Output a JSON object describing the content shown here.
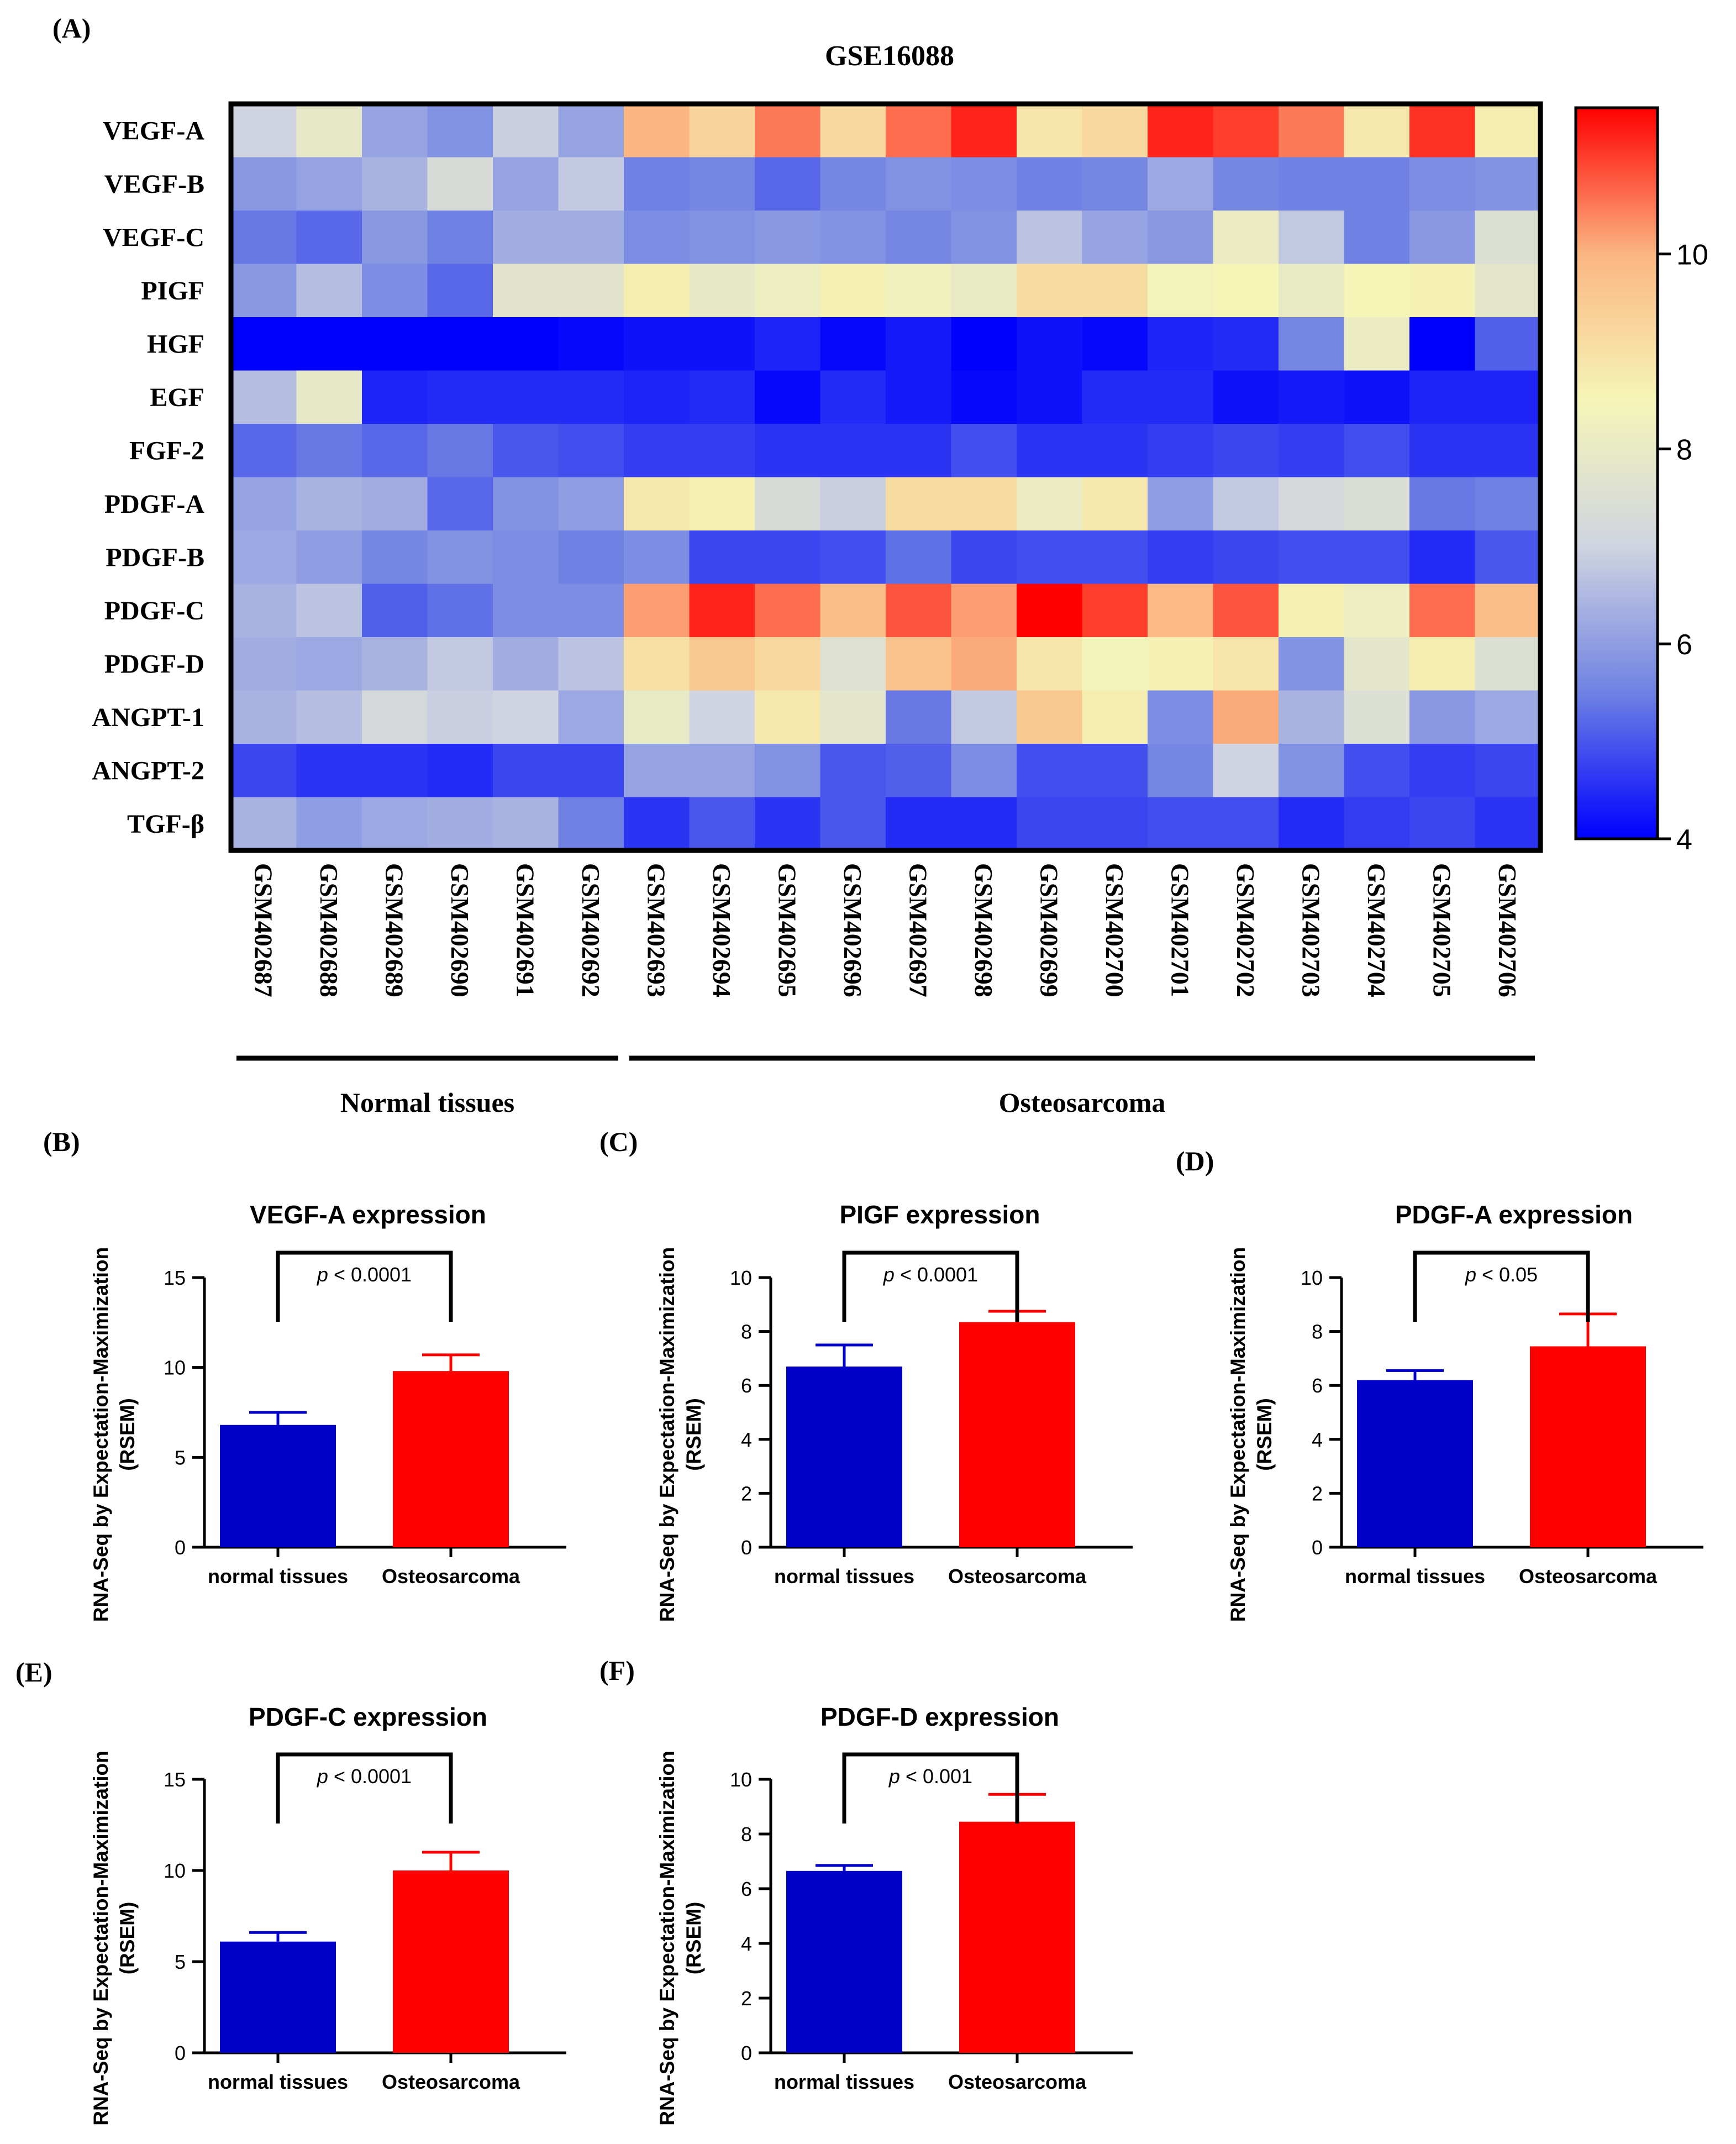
{
  "heatmap": {
    "panel_label": "(A)",
    "title": "GSE16088",
    "genes": [
      "VEGF-A",
      "VEGF-B",
      "VEGF-C",
      "PIGF",
      "HGF",
      "EGF",
      "FGF-2",
      "PDGF-A",
      "PDGF-B",
      "PDGF-C",
      "PDGF-D",
      "ANGPT-1",
      "ANGPT-2",
      "TGF-β"
    ],
    "samples": [
      "GSM402687",
      "GSM402688",
      "GSM402689",
      "GSM402690",
      "GSM402691",
      "GSM402692",
      "GSM402693",
      "GSM402694",
      "GSM402695",
      "GSM402696",
      "GSM402697",
      "GSM402698",
      "GSM402699",
      "GSM402700",
      "GSM402701",
      "GSM402702",
      "GSM402703",
      "GSM402704",
      "GSM402705",
      "GSM402706"
    ],
    "groups": [
      {
        "label": "Normal tissues",
        "first": 0,
        "last": 5
      },
      {
        "label": "Osteosarcoma",
        "first": 6,
        "last": 19
      }
    ],
    "colorbar": {
      "min": 4,
      "max": 11.5,
      "ticks": [
        "4",
        "6",
        "8",
        "10"
      ],
      "colors": [
        "#0000ff",
        "#6f82e3",
        "#cfd4e0",
        "#f5f5b8",
        "#fbb682",
        "#ff0000"
      ]
    },
    "values": [
      [
        7.0,
        7.9,
        6.1,
        5.8,
        6.9,
        6.1,
        10.0,
        9.3,
        10.5,
        9.2,
        10.6,
        11.2,
        8.9,
        9.2,
        11.2,
        11.0,
        10.5,
        8.8,
        11.1,
        8.7
      ],
      [
        5.9,
        6.1,
        6.4,
        7.3,
        6.1,
        6.8,
        5.5,
        5.6,
        5.2,
        5.6,
        5.8,
        5.7,
        5.5,
        5.6,
        6.2,
        5.6,
        5.5,
        5.5,
        5.7,
        5.8
      ],
      [
        5.4,
        5.2,
        5.9,
        5.5,
        6.3,
        6.3,
        5.7,
        5.8,
        5.9,
        5.8,
        5.6,
        5.8,
        6.7,
        6.1,
        5.9,
        8.1,
        6.8,
        5.5,
        5.9,
        7.5
      ],
      [
        5.9,
        6.6,
        5.7,
        5.2,
        7.7,
        7.7,
        8.7,
        7.9,
        8.2,
        8.6,
        8.3,
        8.0,
        9.1,
        9.1,
        8.4,
        8.5,
        8.0,
        8.5,
        8.6,
        7.8
      ],
      [
        4.0,
        4.0,
        4.0,
        4.0,
        4.0,
        4.1,
        4.2,
        4.2,
        4.4,
        4.1,
        4.3,
        4.0,
        4.2,
        4.1,
        4.4,
        4.5,
        5.6,
        8.1,
        4.0,
        5.1
      ],
      [
        6.6,
        7.9,
        4.4,
        4.5,
        4.5,
        4.5,
        4.4,
        4.5,
        4.1,
        4.5,
        4.3,
        4.1,
        4.2,
        4.5,
        4.5,
        4.2,
        4.3,
        4.2,
        4.4,
        4.4
      ],
      [
        5.2,
        5.4,
        5.2,
        5.4,
        5.0,
        4.9,
        4.7,
        4.7,
        4.6,
        4.6,
        4.6,
        4.9,
        4.6,
        4.6,
        4.7,
        4.8,
        4.7,
        4.9,
        4.6,
        4.6
      ],
      [
        6.1,
        6.4,
        6.3,
        5.2,
        5.8,
        6.0,
        8.8,
        8.6,
        7.3,
        6.9,
        9.1,
        9.1,
        8.1,
        8.8,
        6.0,
        6.8,
        7.2,
        7.4,
        5.4,
        5.5
      ],
      [
        6.2,
        6.0,
        5.6,
        5.8,
        5.7,
        5.5,
        5.7,
        4.8,
        4.8,
        4.9,
        5.3,
        4.8,
        4.9,
        4.9,
        4.7,
        4.8,
        4.9,
        4.9,
        4.5,
        5.0
      ],
      [
        6.4,
        6.7,
        5.1,
        5.3,
        5.7,
        5.7,
        10.2,
        11.2,
        10.6,
        9.8,
        10.8,
        10.2,
        11.5,
        11.0,
        9.9,
        10.8,
        8.6,
        8.2,
        10.6,
        9.8
      ],
      [
        6.3,
        6.2,
        6.4,
        6.8,
        6.3,
        6.7,
        9.0,
        9.6,
        9.2,
        7.6,
        9.7,
        10.1,
        8.9,
        8.4,
        8.6,
        8.9,
        5.8,
        7.8,
        8.7,
        7.5
      ],
      [
        6.4,
        6.6,
        7.2,
        6.9,
        7.0,
        6.2,
        8.0,
        7.0,
        8.8,
        7.8,
        5.4,
        6.8,
        9.6,
        8.7,
        5.7,
        10.1,
        6.4,
        7.5,
        5.9,
        6.2
      ],
      [
        4.8,
        4.6,
        4.6,
        4.5,
        4.8,
        4.8,
        6.1,
        6.1,
        5.8,
        5.0,
        5.1,
        5.7,
        4.9,
        4.9,
        5.6,
        7.0,
        5.8,
        4.9,
        4.7,
        4.8
      ],
      [
        6.4,
        6.0,
        6.2,
        6.3,
        6.4,
        5.5,
        4.6,
        5.0,
        4.6,
        5.0,
        4.5,
        4.5,
        4.8,
        4.8,
        4.9,
        4.9,
        4.5,
        4.7,
        4.8,
        4.6
      ]
    ]
  },
  "chart_data": [
    {
      "type": "bar",
      "panel_label": "(B)",
      "title": "VEGF-A expression",
      "ylabel": "RNA-Seq by Expectation-Maximization\n(RSEM)",
      "categories": [
        "normal tissues",
        "Osteosarcoma"
      ],
      "values": [
        6.8,
        9.8
      ],
      "errors": [
        0.7,
        0.9
      ],
      "ylim": [
        0,
        15
      ],
      "yticks": [
        "0",
        "5",
        "10",
        "15"
      ],
      "colors": [
        "#0000c8",
        "#ff0000"
      ],
      "significance": "p < 0.0001"
    },
    {
      "type": "bar",
      "panel_label": "(C)",
      "title": "PIGF expression",
      "ylabel": "RNA-Seq by Expectation-Maximization\n(RSEM)",
      "categories": [
        "normal tissues",
        "Osteosarcoma"
      ],
      "values": [
        6.7,
        8.35
      ],
      "errors": [
        0.8,
        0.4
      ],
      "ylim": [
        0,
        10
      ],
      "yticks": [
        "0",
        "2",
        "4",
        "6",
        "8",
        "10"
      ],
      "colors": [
        "#0000c8",
        "#ff0000"
      ],
      "significance": "p < 0.0001"
    },
    {
      "type": "bar",
      "panel_label": "(D)",
      "title": "PDGF-A expression",
      "ylabel": "RNA-Seq by Expectation-Maximization\n(RSEM)",
      "categories": [
        "normal tissues",
        "Osteosarcoma"
      ],
      "values": [
        6.2,
        7.45
      ],
      "errors": [
        0.35,
        1.2
      ],
      "ylim": [
        0,
        10
      ],
      "yticks": [
        "0",
        "2",
        "4",
        "6",
        "8",
        "10"
      ],
      "colors": [
        "#0000c8",
        "#ff0000"
      ],
      "significance": "p < 0.05"
    },
    {
      "type": "bar",
      "panel_label": "(E)",
      "title": "PDGF-C expression",
      "ylabel": "RNA-Seq by Expectation-Maximization\n(RSEM)",
      "categories": [
        "normal tissues",
        "Osteosarcoma"
      ],
      "values": [
        6.1,
        10.0
      ],
      "errors": [
        0.5,
        1.0
      ],
      "ylim": [
        0,
        15
      ],
      "yticks": [
        "0",
        "5",
        "10",
        "15"
      ],
      "colors": [
        "#0000c8",
        "#ff0000"
      ],
      "significance": "p < 0.0001"
    },
    {
      "type": "bar",
      "panel_label": "(F)",
      "title": "PDGF-D expression",
      "ylabel": "RNA-Seq by Expectation-Maximization\n(RSEM)",
      "categories": [
        "normal tissues",
        "Osteosarcoma"
      ],
      "values": [
        6.65,
        8.45
      ],
      "errors": [
        0.2,
        1.0
      ],
      "ylim": [
        0,
        10
      ],
      "yticks": [
        "0",
        "2",
        "4",
        "6",
        "8",
        "10"
      ],
      "colors": [
        "#0000c8",
        "#ff0000"
      ],
      "significance": "p < 0.001"
    }
  ]
}
